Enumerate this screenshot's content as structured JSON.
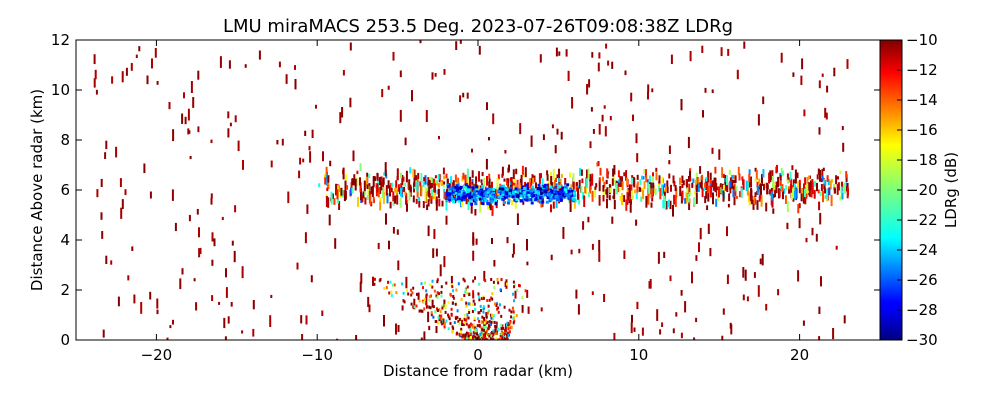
{
  "chart_data": {
    "type": "heatmap",
    "title": "LMU miraMACS 253.5 Deg. 2023-07-26T09:08:38Z  LDRg",
    "xlabel": "Distance from radar (km)",
    "ylabel": "Distance Above radar  (km)",
    "xlim": [
      -25,
      25
    ],
    "ylim": [
      0,
      12
    ],
    "x_ticks": [
      -20,
      -10,
      0,
      10,
      20
    ],
    "x_tick_labels": [
      "−20",
      "−10",
      "0",
      "10",
      "20"
    ],
    "y_ticks": [
      0,
      2,
      4,
      6,
      8,
      10,
      12
    ],
    "y_tick_labels": [
      "0",
      "2",
      "4",
      "6",
      "8",
      "10",
      "12"
    ],
    "colorbar": {
      "label": "LDRg (dB)",
      "range": [
        -30,
        -10
      ],
      "ticks": [
        -10,
        -12,
        -14,
        -16,
        -18,
        -20,
        -22,
        -24,
        -26,
        -28,
        -30
      ],
      "tick_labels": [
        "−10",
        "−12",
        "−14",
        "−16",
        "−18",
        "−20",
        "−22",
        "−24",
        "−26",
        "−28",
        "−30"
      ],
      "colormap": "jet"
    },
    "features": [
      {
        "name": "cloud-layer-6km",
        "x_range": [
          -10,
          23
        ],
        "y_range": [
          5.2,
          7.2
        ],
        "ldr_range": [
          -26,
          -10
        ]
      },
      {
        "name": "ice-core-low-ldr",
        "x_range": [
          -2,
          6
        ],
        "y_range": [
          5.4,
          6.4
        ],
        "ldr_range": [
          -30,
          -22
        ]
      },
      {
        "name": "boundary-layer-echo",
        "x_range": [
          -6,
          5
        ],
        "y_range": [
          0,
          2.5
        ],
        "ldr_range": [
          -26,
          -10
        ]
      },
      {
        "name": "sparse-noise-speckles",
        "x_range": [
          -24,
          23
        ],
        "y_range": [
          0,
          12
        ],
        "ldr_range": [
          -11,
          -10
        ]
      }
    ]
  }
}
